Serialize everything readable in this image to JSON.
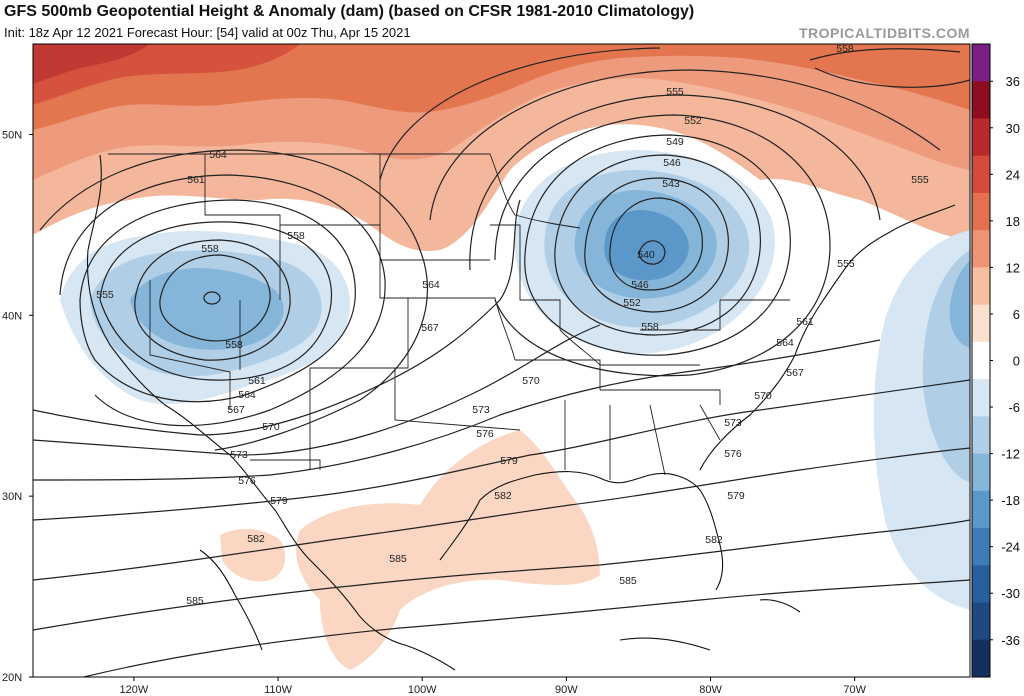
{
  "header": {
    "title": "GFS 500mb Geopotential Height & Anomaly (dam) (based on CFSR 1981-2010 Climatology)",
    "subtitle": "Init: 18z Apr 12 2021   Forecast Hour: [54]   valid at 00z Thu, Apr 15 2021",
    "brand": "TROPICALTIDBITS.COM"
  },
  "map": {
    "projection": "lat-lon",
    "lon_range": [
      -127,
      -62
    ],
    "lat_range": [
      20,
      55
    ],
    "lat_labels": [
      "20N",
      "30N",
      "40N",
      "50N"
    ],
    "lon_labels": [
      "120W",
      "110W",
      "100W",
      "90W",
      "80W",
      "70W"
    ],
    "contour_labels": [
      "564",
      "561",
      "558",
      "555",
      "558",
      "558",
      "561",
      "564",
      "567",
      "570",
      "573",
      "576",
      "579",
      "582",
      "585",
      "564",
      "567",
      "570",
      "573",
      "576",
      "579",
      "582",
      "585",
      "555",
      "552",
      "549",
      "546",
      "543",
      "540",
      "546",
      "552",
      "558",
      "555",
      "561",
      "564",
      "567",
      "570",
      "573",
      "576",
      "579",
      "582",
      "585",
      "558",
      "555"
    ]
  },
  "colorbar": {
    "ticks": [
      "36",
      "30",
      "24",
      "18",
      "12",
      "6",
      "0",
      "-6",
      "-12",
      "-18",
      "-24",
      "-30",
      "-36"
    ],
    "colors": [
      "#7a1f86",
      "#8e0d1e",
      "#b82a2e",
      "#d44b3c",
      "#e4704f",
      "#ef9577",
      "#f7bea2",
      "#fbe0d0",
      "#ffffff",
      "#d6e6f3",
      "#b0cfe7",
      "#86b5da",
      "#5b98c9",
      "#3d7cb8",
      "#2a5f9d",
      "#1f4780",
      "#142f60"
    ]
  }
}
